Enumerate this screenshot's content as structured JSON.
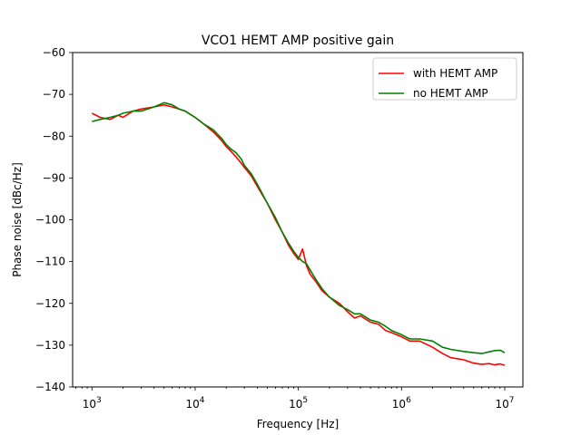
{
  "chart_data": {
    "type": "line",
    "title": "VCO1 HEMT AMP positive gain",
    "xlabel": "Frequency [Hz]",
    "ylabel": "Phase noise [dBc/Hz]",
    "xscale": "log",
    "xlim": [
      650,
      15000000
    ],
    "ylim": [
      -140,
      -60
    ],
    "x_ticks": [
      {
        "value": 1000,
        "base": "10",
        "exp": "3"
      },
      {
        "value": 10000,
        "base": "10",
        "exp": "4"
      },
      {
        "value": 100000,
        "base": "10",
        "exp": "5"
      },
      {
        "value": 1000000,
        "base": "10",
        "exp": "6"
      },
      {
        "value": 10000000,
        "base": "10",
        "exp": "7"
      }
    ],
    "y_ticks": [
      {
        "value": -60,
        "label": "−60"
      },
      {
        "value": -70,
        "label": "−70"
      },
      {
        "value": -80,
        "label": "−80"
      },
      {
        "value": -90,
        "label": "−90"
      },
      {
        "value": -100,
        "label": "−100"
      },
      {
        "value": -110,
        "label": "−110"
      },
      {
        "value": -120,
        "label": "−120"
      },
      {
        "value": -130,
        "label": "−130"
      },
      {
        "value": -140,
        "label": "−140"
      }
    ],
    "grid": false,
    "legend_position": "upper-right",
    "series": [
      {
        "name": "with HEMT AMP",
        "color": "#ff0000",
        "x": [
          1000,
          1200,
          1500,
          1800,
          2000,
          2500,
          3000,
          4000,
          5000,
          6000,
          7000,
          8000,
          10000,
          12000,
          15000,
          18000,
          20000,
          22000,
          25000,
          28000,
          30000,
          35000,
          40000,
          50000,
          60000,
          70000,
          80000,
          90000,
          100000,
          110000,
          120000,
          130000,
          150000,
          170000,
          200000,
          250000,
          300000,
          350000,
          400000,
          500000,
          600000,
          700000,
          800000,
          1000000,
          1200000,
          1500000,
          2000000,
          2500000,
          3000000,
          4000000,
          5000000,
          6000000,
          7000000,
          8000000,
          9000000,
          10000000
        ],
        "y": [
          -74.5,
          -75.5,
          -76,
          -75,
          -75.5,
          -74,
          -73.5,
          -73,
          -72.5,
          -73,
          -73.5,
          -74,
          -75.5,
          -77,
          -79,
          -81,
          -82.5,
          -83.5,
          -85,
          -86.5,
          -87.5,
          -89.5,
          -92,
          -96,
          -100,
          -103,
          -106,
          -108,
          -109.5,
          -107,
          -111,
          -113,
          -115,
          -117,
          -118.5,
          -120,
          -122,
          -123.5,
          -123,
          -124.5,
          -125,
          -126.5,
          -127,
          -128,
          -129,
          -129,
          -130.5,
          -132,
          -133,
          -133.5,
          -134.3,
          -134.6,
          -134.4,
          -134.7,
          -134.5,
          -134.8
        ]
      },
      {
        "name": "no HEMT AMP",
        "color": "#008000",
        "x": [
          1000,
          1200,
          1500,
          1800,
          2000,
          2500,
          3000,
          4000,
          5000,
          6000,
          7000,
          8000,
          10000,
          12000,
          15000,
          18000,
          20000,
          22000,
          25000,
          28000,
          30000,
          35000,
          40000,
          50000,
          60000,
          70000,
          80000,
          90000,
          100000,
          110000,
          120000,
          130000,
          150000,
          170000,
          200000,
          250000,
          300000,
          350000,
          400000,
          500000,
          600000,
          700000,
          800000,
          1000000,
          1200000,
          1500000,
          2000000,
          2500000,
          3000000,
          4000000,
          5000000,
          6000000,
          7000000,
          8000000,
          9000000,
          10000000
        ],
        "y": [
          -76.5,
          -76,
          -75.5,
          -75,
          -74.5,
          -74,
          -74,
          -73,
          -72,
          -72.5,
          -73.5,
          -74,
          -75.5,
          -77,
          -78.5,
          -80.5,
          -82,
          -83,
          -84,
          -85.5,
          -87,
          -89,
          -91.5,
          -96,
          -99.5,
          -103,
          -105.5,
          -107.5,
          -109,
          -110,
          -110.5,
          -112,
          -114.5,
          -116.5,
          -118.5,
          -120.5,
          -121.5,
          -122.5,
          -122.5,
          -124,
          -124.5,
          -125.5,
          -126.5,
          -127.5,
          -128.5,
          -128.5,
          -129,
          -130.5,
          -131,
          -131.5,
          -131.8,
          -132,
          -131.6,
          -131.3,
          -131.2,
          -131.8
        ]
      }
    ]
  }
}
